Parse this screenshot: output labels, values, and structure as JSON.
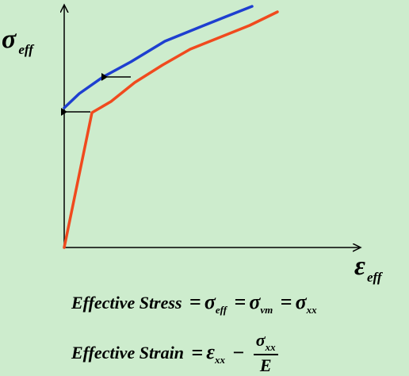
{
  "colors": {
    "background": "#cdeccd",
    "axis": "#000000",
    "curve_original": "#f04a1e",
    "curve_shifted": "#1e3fd0",
    "arrow": "#000000"
  },
  "axes": {
    "y_symbol": "σ",
    "y_subscript": "eff",
    "x_symbol": "ε",
    "x_subscript": "eff"
  },
  "equations": {
    "stress": {
      "label": "Effective Stress",
      "eq1": "=",
      "t1_sym": "σ",
      "t1_sub": "eff",
      "eq2": "=",
      "t2_sym": "σ",
      "t2_sub": "vm",
      "eq3": "=",
      "t3_sym": "σ",
      "t3_sub": "xx"
    },
    "strain": {
      "label": "Effective Strain",
      "eq": "=",
      "t1_sym": "ε",
      "t1_sub": "xx",
      "minus": "−",
      "num_sym": "σ",
      "num_sub": "xx",
      "den": "E"
    }
  }
}
